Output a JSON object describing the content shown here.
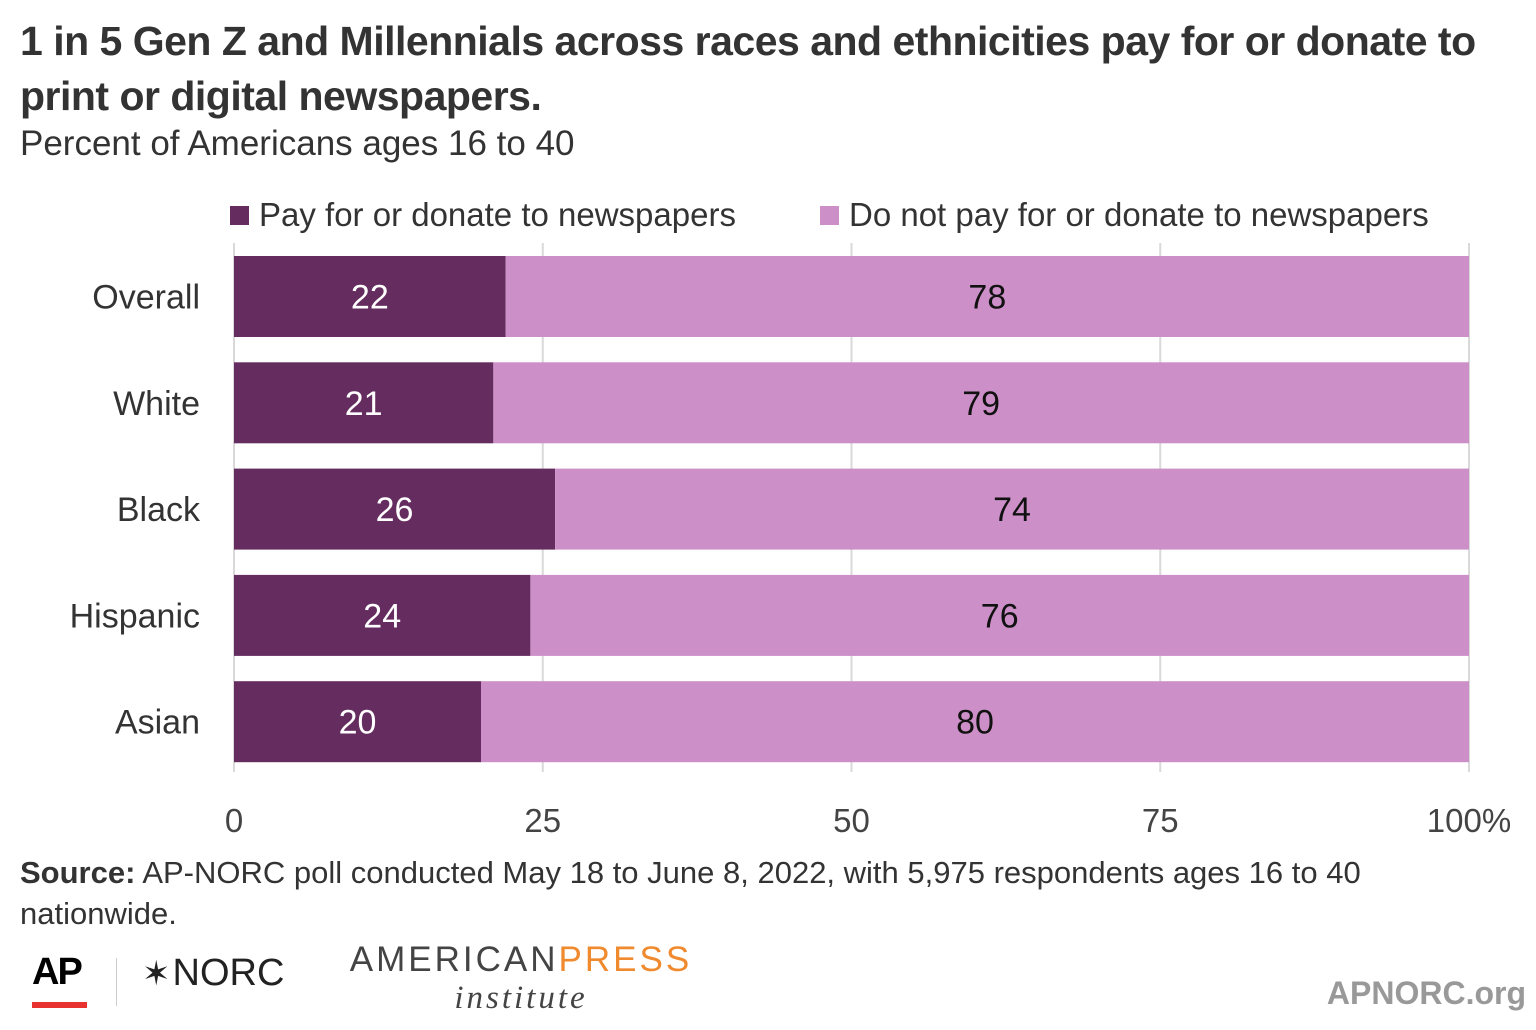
{
  "title": "1 in 5 Gen Z and Millennials across races and ethnicities pay for or donate to print or digital newspapers.",
  "subtitle": "Percent of Americans ages 16 to 40",
  "chart_data": {
    "type": "bar",
    "orientation": "horizontal",
    "stacked": true,
    "categories": [
      "Overall",
      "White",
      "Black",
      "Hispanic",
      "Asian"
    ],
    "series": [
      {
        "name": "Pay for or donate to newspapers",
        "color": "#652d5f",
        "values": [
          22,
          21,
          26,
          24,
          20
        ]
      },
      {
        "name": "Do not pay for or donate to newspapers",
        "color": "#cc8fc8",
        "values": [
          78,
          79,
          74,
          76,
          80
        ]
      }
    ],
    "xlim": [
      0,
      100
    ],
    "xticks": [
      "0",
      "25",
      "50",
      "75",
      "100%"
    ],
    "xtick_values": [
      0,
      25,
      50,
      75,
      100
    ],
    "grid": true,
    "legend_placement": "top"
  },
  "source": {
    "label": "Source:",
    "text": " AP-NORC poll conducted May 18 to June 8, 2022, with 5,975 respondents ages 16 to 40 nationwide."
  },
  "logos": {
    "ap": "AP",
    "norc": "NORC",
    "api_line1a": "AMERICAN",
    "api_line1b": "PRESS",
    "api_line2": "institute",
    "site": "APNORC.org"
  }
}
